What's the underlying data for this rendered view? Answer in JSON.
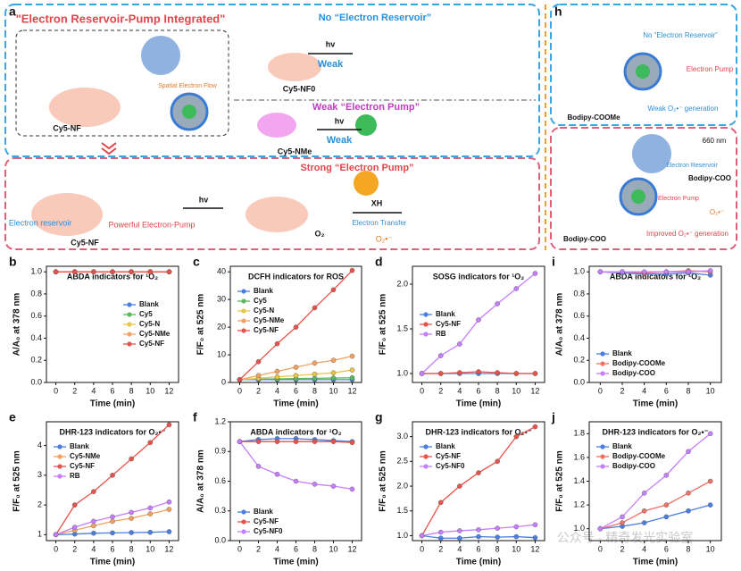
{
  "panel_a": {
    "label": "a",
    "banner": "\"Electron Reservoir-Pump Integrated\"",
    "spatial_flow": "Spatial Electron Flow",
    "mol_top": "Cy5-NF",
    "no_reservoir": "No “Electron Reservoir”",
    "hv1": "hv",
    "weak1": "Weak",
    "mol_nf0": "Cy5-NF0",
    "weak_pump": "Weak “Electron Pump”",
    "hv2": "hv",
    "weak2": "Weak",
    "mol_nme": "Cy5-NMe",
    "strong_pump": "Strong “Electron Pump”",
    "reservoir": "Electron reservoir",
    "mol_bottom": "Cy5-NF",
    "powerful": "Powerful Electron-Pump",
    "hv3": "hv",
    "o2": "O₂",
    "xh": "XH",
    "transfer": "Electron Transfer",
    "superoxide": "O₂•⁻"
  },
  "panel_h": {
    "label": "h",
    "mol_top": "Bodipy-COOMe",
    "no_reservoir": "No “Electron Reservoir”",
    "pump1": "Electron Pump",
    "weak_gen": "Weak O₂•⁻ generation",
    "light": "660 nm",
    "mol_side": "Bodipy-COO",
    "reservoir": "Electron Reservoir",
    "pump2": "Electron Pump",
    "mol_bottom": "Bodipy-COO",
    "improved_gen": "Improved O₂•⁻ generation",
    "superoxide": "O₂•⁻"
  },
  "watermark": "公众号 · 精奇发光实验室",
  "chart_data": [
    {
      "type": "line",
      "label": "b",
      "title": "ABDA indicators for ¹O₂",
      "xlabel": "Time (min)",
      "ylabel": "A/A₀ at 378 nm",
      "legend": "center right",
      "x": [
        0,
        2,
        4,
        6,
        8,
        10,
        12
      ],
      "xlim": [
        -1,
        13
      ],
      "xticks": [
        0,
        2,
        4,
        6,
        8,
        10,
        12
      ],
      "ylim": [
        0,
        1.05
      ],
      "yticks": [
        {
          "value": 0,
          "label": "0.0"
        },
        0.2,
        0.4,
        0.6,
        0.8,
        {
          "value": 1,
          "label": "1.0"
        }
      ],
      "series": [
        {
          "name": "Blank",
          "color": "#4a7fe0",
          "values": [
            1,
            1,
            1,
            1,
            1,
            1,
            1
          ]
        },
        {
          "name": "Cy5",
          "color": "#5cb85c",
          "values": [
            1,
            1,
            1,
            1,
            1,
            1,
            1
          ]
        },
        {
          "name": "Cy5-N",
          "color": "#e8c547",
          "values": [
            1,
            1,
            1,
            1,
            1,
            1,
            1
          ]
        },
        {
          "name": "Cy5-NMe",
          "color": "#f4a261",
          "values": [
            1,
            1,
            1,
            1,
            1,
            1,
            1
          ]
        },
        {
          "name": "Cy5-NF",
          "color": "#e8524a",
          "values": [
            1,
            1,
            1,
            1,
            1,
            1,
            1
          ]
        }
      ]
    },
    {
      "type": "line",
      "label": "c",
      "title": "DCFH indicators for ROS",
      "xlabel": "Time (min)",
      "ylabel": "F/F₀ at 525 nm",
      "legend": "upper left",
      "x": [
        0,
        2,
        4,
        6,
        8,
        10,
        12
      ],
      "xlim": [
        -1,
        13
      ],
      "xticks": [
        0,
        2,
        4,
        6,
        8,
        10,
        12
      ],
      "ylim": [
        0,
        42
      ],
      "yticks": [
        0,
        10,
        20,
        30,
        40
      ],
      "series": [
        {
          "name": "Blank",
          "color": "#4a7fe0",
          "values": [
            1,
            1,
            1,
            1,
            1,
            1,
            1
          ]
        },
        {
          "name": "Cy5",
          "color": "#5cb85c",
          "values": [
            1,
            1.2,
            1.3,
            1.4,
            1.5,
            1.6,
            1.7
          ]
        },
        {
          "name": "Cy5-N",
          "color": "#e8c547",
          "values": [
            1,
            1.5,
            2,
            2.5,
            3,
            3.5,
            4.5
          ]
        },
        {
          "name": "Cy5-NMe",
          "color": "#f4a261",
          "values": [
            1,
            2.5,
            4,
            5.5,
            7,
            8,
            9.5
          ]
        },
        {
          "name": "Cy5-NF",
          "color": "#e8524a",
          "values": [
            1,
            7.5,
            14,
            20,
            27,
            33.5,
            40.5
          ]
        }
      ]
    },
    {
      "type": "line",
      "label": "d",
      "title": "SOSG indicators for ¹O₂",
      "xlabel": "Time (min)",
      "ylabel": "F/F₀ at 525 nm",
      "legend": "center left",
      "x": [
        0,
        2,
        4,
        6,
        8,
        10,
        12
      ],
      "xlim": [
        -1,
        13
      ],
      "xticks": [
        0,
        2,
        4,
        6,
        8,
        10,
        12
      ],
      "ylim": [
        0.9,
        2.2
      ],
      "yticks": [
        {
          "value": 1,
          "label": "1.0"
        },
        1.5,
        {
          "value": 2,
          "label": "2.0"
        }
      ],
      "series": [
        {
          "name": "Blank",
          "color": "#4a7fe0",
          "values": [
            1,
            1,
            1,
            1,
            1,
            1,
            1
          ]
        },
        {
          "name": "Cy5-NF",
          "color": "#e8524a",
          "values": [
            1,
            1,
            1.01,
            1.02,
            1.01,
            1,
            1
          ]
        },
        {
          "name": "RB",
          "color": "#c77dff",
          "values": [
            1,
            1.2,
            1.33,
            1.6,
            1.78,
            1.95,
            2.12
          ]
        }
      ]
    },
    {
      "type": "line",
      "label": "i",
      "title": "ABDA indicators for ¹O₂",
      "xlabel": "Time (min)",
      "ylabel": "A/A₀ at 378 nm",
      "legend": "lower left",
      "x": [
        0,
        2,
        4,
        6,
        8,
        10
      ],
      "xlim": [
        -1,
        11
      ],
      "xticks": [
        0,
        2,
        4,
        6,
        8,
        10
      ],
      "ylim": [
        0,
        1.05
      ],
      "yticks": [
        {
          "value": 0,
          "label": "0.0"
        },
        0.2,
        0.4,
        0.6,
        0.8,
        {
          "value": 1,
          "label": "1.0"
        }
      ],
      "series": [
        {
          "name": "Blank",
          "color": "#4a7fe0",
          "values": [
            1,
            0.99,
            0.98,
            0.98,
            0.99,
            0.97
          ]
        },
        {
          "name": "Bodipy-COOMe",
          "color": "#f07167",
          "values": [
            1,
            1,
            0.99,
            1,
            1.01,
            1
          ]
        },
        {
          "name": "Bodipy-COO",
          "color": "#c77dff",
          "values": [
            1,
            1,
            1,
            1,
            1,
            1.01
          ]
        }
      ]
    },
    {
      "type": "line",
      "label": "e",
      "title": "DHR-123 indicators for O₂•⁻",
      "xlabel": "Time (min)",
      "ylabel": "F/F₀ at 525 nm",
      "legend": "upper left",
      "x": [
        0,
        2,
        4,
        6,
        8,
        10,
        12
      ],
      "xlim": [
        -1,
        13
      ],
      "xticks": [
        0,
        2,
        4,
        6,
        8,
        10,
        12
      ],
      "ylim": [
        0.8,
        4.8
      ],
      "yticks": [
        1,
        2,
        3,
        4
      ],
      "series": [
        {
          "name": "Blank",
          "color": "#4a7fe0",
          "values": [
            1,
            1.02,
            1.05,
            1.06,
            1.07,
            1.08,
            1.1
          ]
        },
        {
          "name": "Cy5-NMe",
          "color": "#f4a261",
          "values": [
            1,
            1.15,
            1.3,
            1.45,
            1.55,
            1.7,
            1.85
          ]
        },
        {
          "name": "Cy5-NF",
          "color": "#e8524a",
          "values": [
            1,
            2,
            2.45,
            3,
            3.55,
            4.1,
            4.7
          ]
        },
        {
          "name": "RB",
          "color": "#c77dff",
          "values": [
            1,
            1.25,
            1.45,
            1.6,
            1.75,
            1.9,
            2.1
          ]
        }
      ]
    },
    {
      "type": "line",
      "label": "f",
      "title": "ABDA indicators for ¹O₂",
      "xlabel": "Time (min)",
      "ylabel": "A/A₀ at 378 nm",
      "legend": "lower left",
      "x": [
        0,
        2,
        4,
        6,
        8,
        10,
        12
      ],
      "xlim": [
        -1,
        13
      ],
      "xticks": [
        0,
        2,
        4,
        6,
        8,
        10,
        12
      ],
      "ylim": [
        0,
        1.2
      ],
      "yticks": [
        {
          "value": 0,
          "label": "0.0"
        },
        0.3,
        0.6,
        0.9,
        1.2
      ],
      "series": [
        {
          "name": "Blank",
          "color": "#4a7fe0",
          "values": [
            1,
            1.02,
            1.03,
            1.03,
            1.02,
            1.01,
            1
          ]
        },
        {
          "name": "Cy5-NF",
          "color": "#e8524a",
          "values": [
            1,
            1,
            1,
            1,
            1,
            1,
            0.99
          ]
        },
        {
          "name": "Cy5-NF0",
          "color": "#c77dff",
          "values": [
            1,
            0.75,
            0.67,
            0.6,
            0.57,
            0.55,
            0.52
          ]
        }
      ]
    },
    {
      "type": "line",
      "label": "g",
      "title": "DHR-123 indicators for O₂•⁻",
      "xlabel": "Time (min)",
      "ylabel": "F/F₀ at 525 nm",
      "legend": "upper left",
      "x": [
        0,
        2,
        4,
        6,
        8,
        10,
        12
      ],
      "xlim": [
        -1,
        13
      ],
      "xticks": [
        0,
        2,
        4,
        6,
        8,
        10,
        12
      ],
      "ylim": [
        0.9,
        3.3
      ],
      "yticks": [
        {
          "value": 1,
          "label": "1.0"
        },
        1.5,
        {
          "value": 2,
          "label": "2.0"
        },
        2.5,
        {
          "value": 3,
          "label": "3.0"
        }
      ],
      "series": [
        {
          "name": "Blank",
          "color": "#4a7fe0",
          "values": [
            1,
            0.95,
            0.95,
            0.98,
            0.97,
            0.98,
            0.96
          ]
        },
        {
          "name": "Cy5-NF",
          "color": "#e8524a",
          "values": [
            1,
            1.67,
            2,
            2.27,
            2.5,
            3,
            3.2
          ]
        },
        {
          "name": "Cy5-NF0",
          "color": "#c77dff",
          "values": [
            1,
            1.07,
            1.1,
            1.12,
            1.15,
            1.18,
            1.22
          ]
        }
      ]
    },
    {
      "type": "line",
      "label": "j",
      "title": "DHR-123 indicators for O₂•⁻",
      "xlabel": "Time (min)",
      "ylabel": "F/F₀ at 525 nm",
      "legend": "upper left",
      "x": [
        0,
        2,
        4,
        6,
        8,
        10
      ],
      "xlim": [
        -1,
        11
      ],
      "xticks": [
        0,
        2,
        4,
        6,
        8,
        10
      ],
      "ylim": [
        0.9,
        1.9
      ],
      "yticks": [
        {
          "value": 1,
          "label": "1.0"
        },
        1.2,
        1.4,
        1.6,
        1.8
      ],
      "series": [
        {
          "name": "Blank",
          "color": "#4a7fe0",
          "values": [
            1,
            1.02,
            1.05,
            1.1,
            1.15,
            1.2
          ]
        },
        {
          "name": "Bodipy-COOMe",
          "color": "#f07167",
          "values": [
            1,
            1.05,
            1.15,
            1.2,
            1.3,
            1.4
          ]
        },
        {
          "name": "Bodipy-COO",
          "color": "#c77dff",
          "values": [
            1,
            1.1,
            1.3,
            1.45,
            1.65,
            1.8
          ]
        }
      ]
    }
  ]
}
